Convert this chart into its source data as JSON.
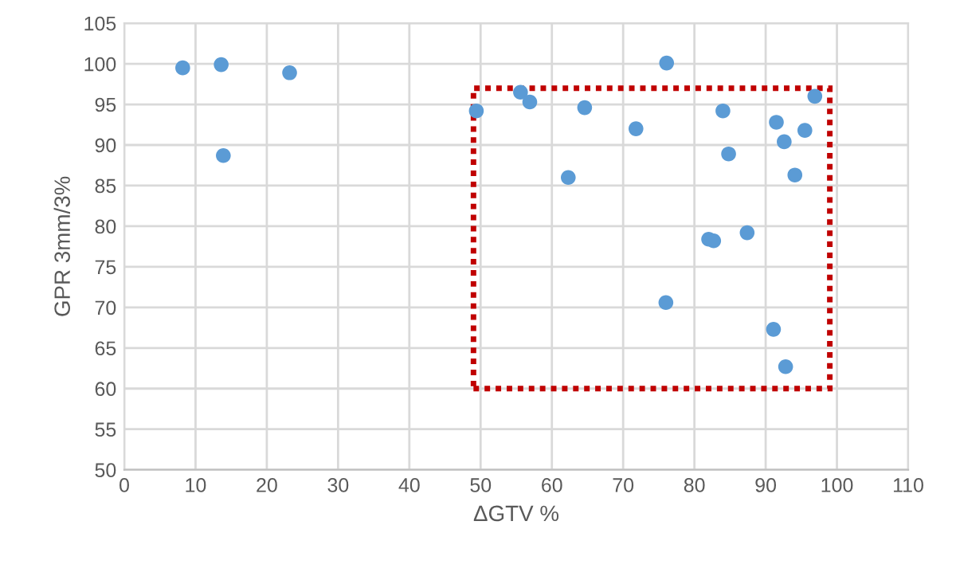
{
  "chart_data": {
    "type": "scatter",
    "xlabel": "ΔGTV %",
    "ylabel": "GPR 3mm/3%",
    "x": [
      8.2,
      13.6,
      23.2,
      13.9,
      49.4,
      55.6,
      56.9,
      64.6,
      62.3,
      71.8,
      76.1,
      76.0,
      84.0,
      84.8,
      82.0,
      82.7,
      87.4,
      91.5,
      92.6,
      95.5,
      94.1,
      96.9,
      91.1,
      92.8
    ],
    "series": [
      {
        "color": "#5b9bd5",
        "values": [
          99.5,
          99.9,
          98.9,
          88.7,
          94.2,
          96.5,
          95.3,
          94.6,
          86.0,
          92.0,
          100.1,
          70.6,
          94.2,
          88.9,
          78.4,
          78.2,
          79.2,
          92.8,
          90.4,
          91.8,
          86.3,
          96.0,
          67.3,
          62.7
        ]
      }
    ],
    "xlim": [
      0,
      110
    ],
    "xticks": [
      0,
      10,
      20,
      30,
      40,
      50,
      60,
      70,
      80,
      90,
      100,
      110
    ],
    "ylim": [
      50,
      105
    ],
    "yticks": [
      50,
      55,
      60,
      65,
      70,
      75,
      80,
      85,
      90,
      95,
      100,
      105
    ],
    "grid": true,
    "marker": "circle"
  }
}
